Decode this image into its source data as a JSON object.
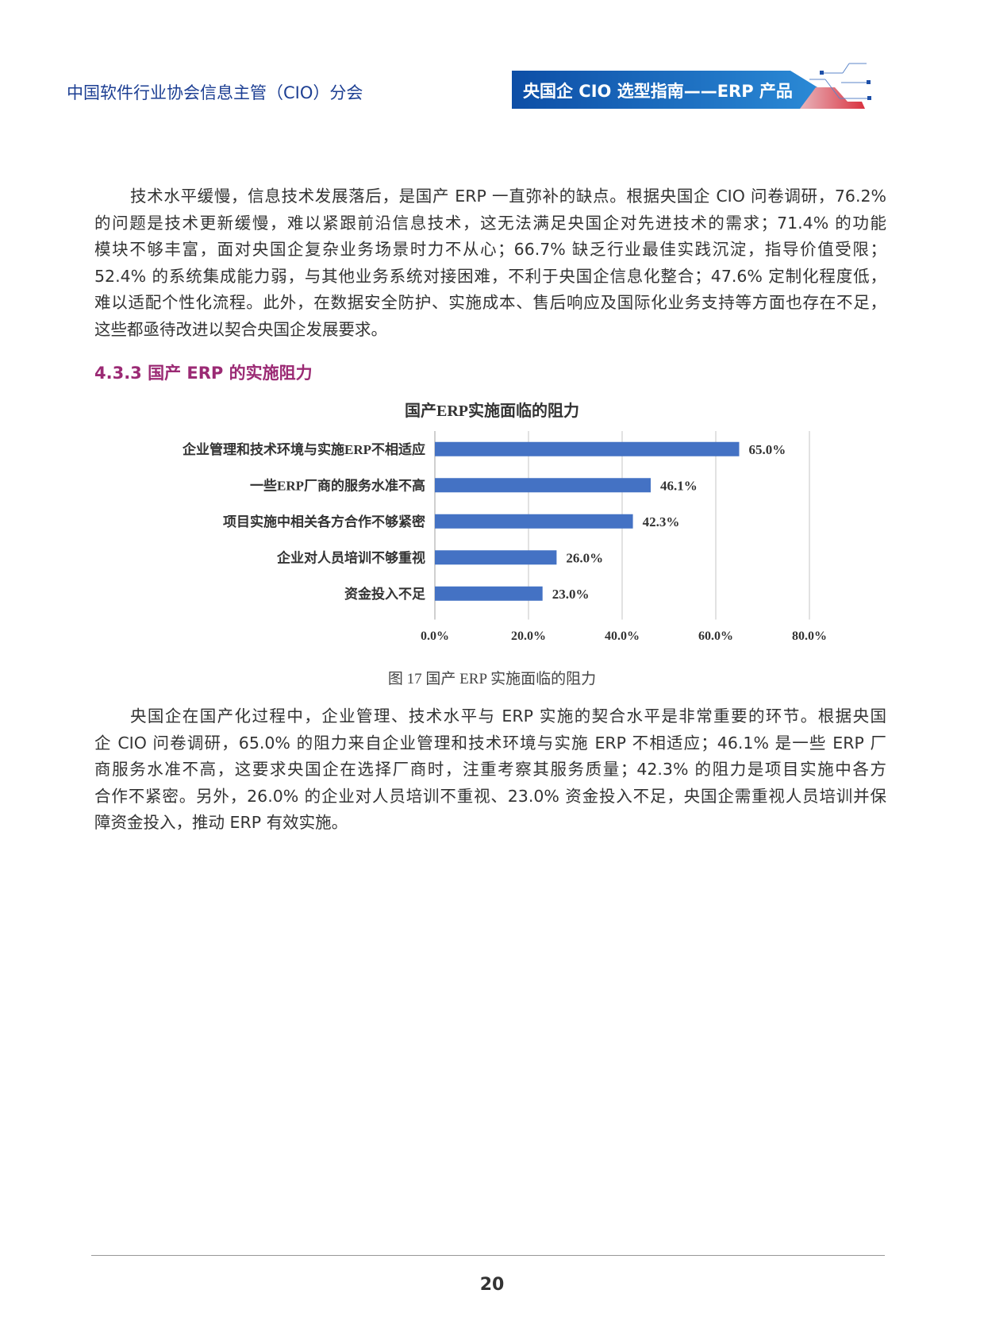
{
  "header": {
    "org": "中国软件行业协会信息主管（CIO）分会",
    "banner": "央国企 CIO 选型指南——ERP 产品"
  },
  "para1": [
    "技术水平缓慢，信息技术发展落后，是国产 ERP 一直弥补的缺点。根据央国企 CIO 问卷调研，76.2%",
    "的问题是技术更新缓慢，难以紧跟前沿信息技术，这无法满足央国企对先进技术的需求；71.4% 的功能",
    "模块不够丰富，面对央国企复杂业务场景时力不从心；66.7% 缺乏行业最佳实践沉淀，指导价值受限；",
    "52.4% 的系统集成能力弱，与其他业务系统对接困难，不利于央国企信息化整合；47.6% 定制化程度低，",
    "难以适配个性化流程。此外，在数据安全防护、实施成本、售后响应及国际化业务支持等方面也存在不足，",
    "这些都亟待改进以契合央国企发展要求。"
  ],
  "section_heading": "4.3.3 国产 ERP 的实施阻力",
  "chart_data": {
    "type": "bar",
    "orientation": "horizontal",
    "title": "国产ERP实施面临的阻力",
    "categories": [
      "企业管理和技术环境与实施ERP不相适应",
      "一些ERP厂商的服务水准不高",
      "项目实施中相关各方合作不够紧密",
      "企业对人员培训不够重视",
      "资金投入不足"
    ],
    "values": [
      65.0,
      46.1,
      42.3,
      26.0,
      23.0
    ],
    "data_labels": [
      "65.0%",
      "46.1%",
      "42.3%",
      "26.0%",
      "23.0%"
    ],
    "xlim": [
      0,
      80
    ],
    "xticks": [
      "0.0%",
      "20.0%",
      "40.0%",
      "60.0%",
      "80.0%"
    ],
    "grid": true,
    "bar_color": "#4472c4"
  },
  "caption": "图 17 国产 ERP 实施面临的阻力",
  "para2": [
    "央国企在国产化过程中，企业管理、技术水平与 ERP 实施的契合水平是非常重要的环节。根据央国",
    "企 CIO 问卷调研，65.0% 的阻力来自企业管理和技术环境与实施 ERP 不相适应；46.1% 是一些 ERP 厂",
    "商服务水准不高，这要求央国企在选择厂商时，注重考察其服务质量；42.3% 的阻力是项目实施中各方",
    "合作不紧密。另外，26.0% 的企业对人员培训不重视、23.0% 资金投入不足，央国企需重视人员培训并保",
    "障资金投入，推动 ERP 有效实施。"
  ],
  "footer": {
    "page_number": "20"
  }
}
